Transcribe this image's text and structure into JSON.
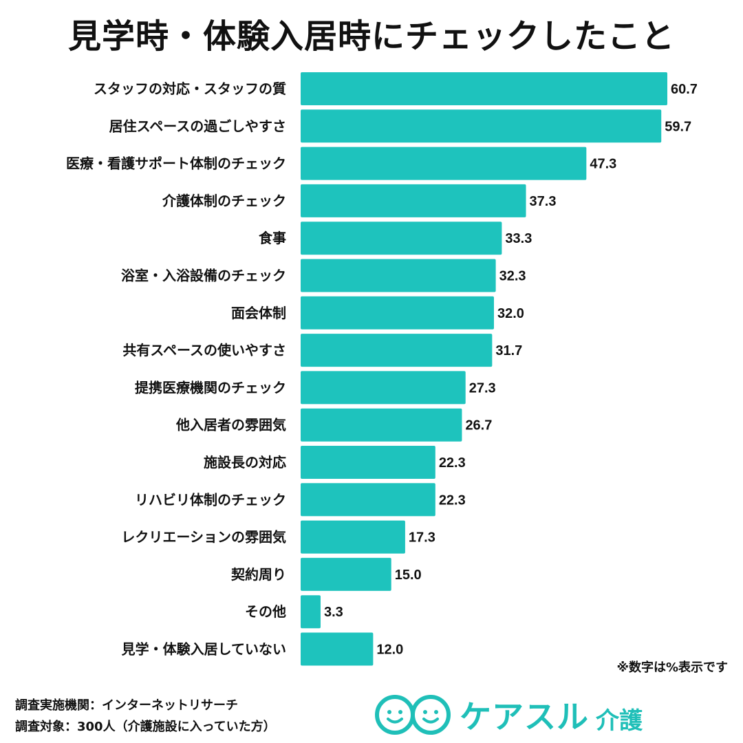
{
  "title": "見学時・体験入居時にチェックしたこと",
  "note": "※数字は%表示です",
  "source": {
    "line1": "調査実施機関：インターネットリサーチ",
    "line2": "調査対象：300人（介護施設に入っていた方）"
  },
  "logo": {
    "text": "ケアスル",
    "sub": "介護",
    "icon": "two-smiling-faces-icon",
    "color": "#1fbfb8"
  },
  "colors": {
    "bar": "#1ec3bd"
  },
  "chart_data": {
    "type": "bar",
    "orientation": "horizontal",
    "title": "見学時・体験入居時にチェックしたこと",
    "xlim": [
      0,
      62
    ],
    "grid": false,
    "categories": [
      "スタッフの対応・スタッフの質",
      "居住スペースの過ごしやすさ",
      "医療・看護サポート体制のチェック",
      "介護体制のチェック",
      "食事",
      "浴室・入浴設備のチェック",
      "面会体制",
      "共有スペースの使いやすさ",
      "提携医療機関のチェック",
      "他入居者の雰囲気",
      "施設長の対応",
      "リハビリ体制のチェック",
      "レクリエーションの雰囲気",
      "契約周り",
      "その他",
      "見学・体験入居していない"
    ],
    "values": [
      60.7,
      59.7,
      47.3,
      37.3,
      33.3,
      32.3,
      32.0,
      31.7,
      27.3,
      26.7,
      22.3,
      22.3,
      17.3,
      15.0,
      3.3,
      12.0
    ],
    "value_labels": [
      "60.7",
      "59.7",
      "47.3",
      "37.3",
      "33.3",
      "32.3",
      "32.0",
      "31.7",
      "27.3",
      "26.7",
      "22.3",
      "22.3",
      "17.3",
      "15.0",
      "3.3",
      "12.0"
    ]
  }
}
